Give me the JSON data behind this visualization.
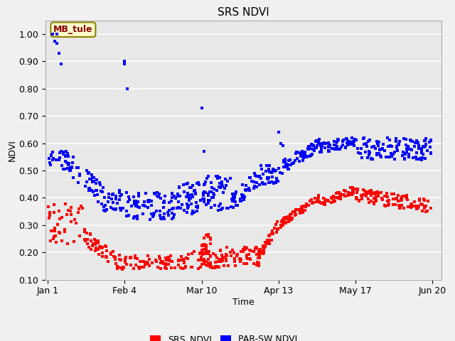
{
  "title": "SRS NDVI",
  "xlabel": "Time",
  "ylabel": "NDVI",
  "ylim": [
    0.1,
    1.05
  ],
  "annotation_text": "MB_tule",
  "bg_color": "#f0f0f0",
  "plot_bg_color": "#e8e8e8",
  "legend_labels": [
    "SRS_NDVI",
    "PAR-SW NDVI"
  ],
  "legend_colors": [
    "#ff0000",
    "#0000ff"
  ],
  "xtick_labels": [
    "Jan 1",
    "Feb 4",
    "Mar 10",
    "Apr 13",
    "May 17",
    "Jun 20"
  ],
  "xtick_positions": [
    1,
    35,
    69,
    103,
    137,
    171
  ],
  "ytick_labels": [
    "0.10",
    "0.20",
    "0.30",
    "0.40",
    "0.50",
    "0.60",
    "0.70",
    "0.80",
    "0.90",
    "1.00"
  ],
  "ytick_values": [
    0.1,
    0.2,
    0.3,
    0.4,
    0.5,
    0.6,
    0.7,
    0.8,
    0.9,
    1.0
  ],
  "marker_size": 5
}
